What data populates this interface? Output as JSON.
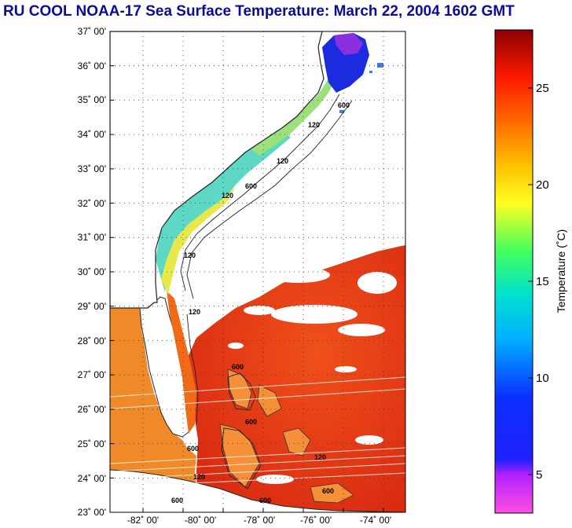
{
  "title": "RU COOL  NOAA-17  Sea Surface Temperature:  March 22, 2004 1602 GMT",
  "map": {
    "lat_labels": [
      "37˚ 00'",
      "36˚ 00'",
      "35˚ 00'",
      "34˚ 00'",
      "33˚ 00'",
      "32˚ 00'",
      "31˚ 00'",
      "30˚ 00'",
      "29˚ 00'",
      "28˚ 00'",
      "27˚ 00'",
      "26˚ 00'",
      "25˚ 00'",
      "24˚ 00'",
      "23˚ 00'"
    ],
    "lon_labels": [
      "-82˚ 00'",
      "-80˚ 00'",
      "-78˚ 00'",
      "-76˚ 00'",
      "-74˚ 00'"
    ],
    "contour_labels": [
      "600",
      "120",
      "600",
      "120",
      "120",
      "600",
      "120",
      "120",
      "600",
      "600",
      "600",
      "120",
      "600",
      "600",
      "120"
    ],
    "colors": {
      "land": "#ffffff",
      "warm_water": "#e8340f",
      "mid_water": "#f59a1c",
      "cool_water": "#3fd6d0",
      "cold_water": "#1a2be0",
      "coast": "#1a1a1a"
    }
  },
  "colorbar": {
    "title": "Temperature (˚C)",
    "tick_labels": [
      "25",
      "20",
      "15",
      "10",
      "5"
    ],
    "range": [
      3,
      28
    ]
  }
}
